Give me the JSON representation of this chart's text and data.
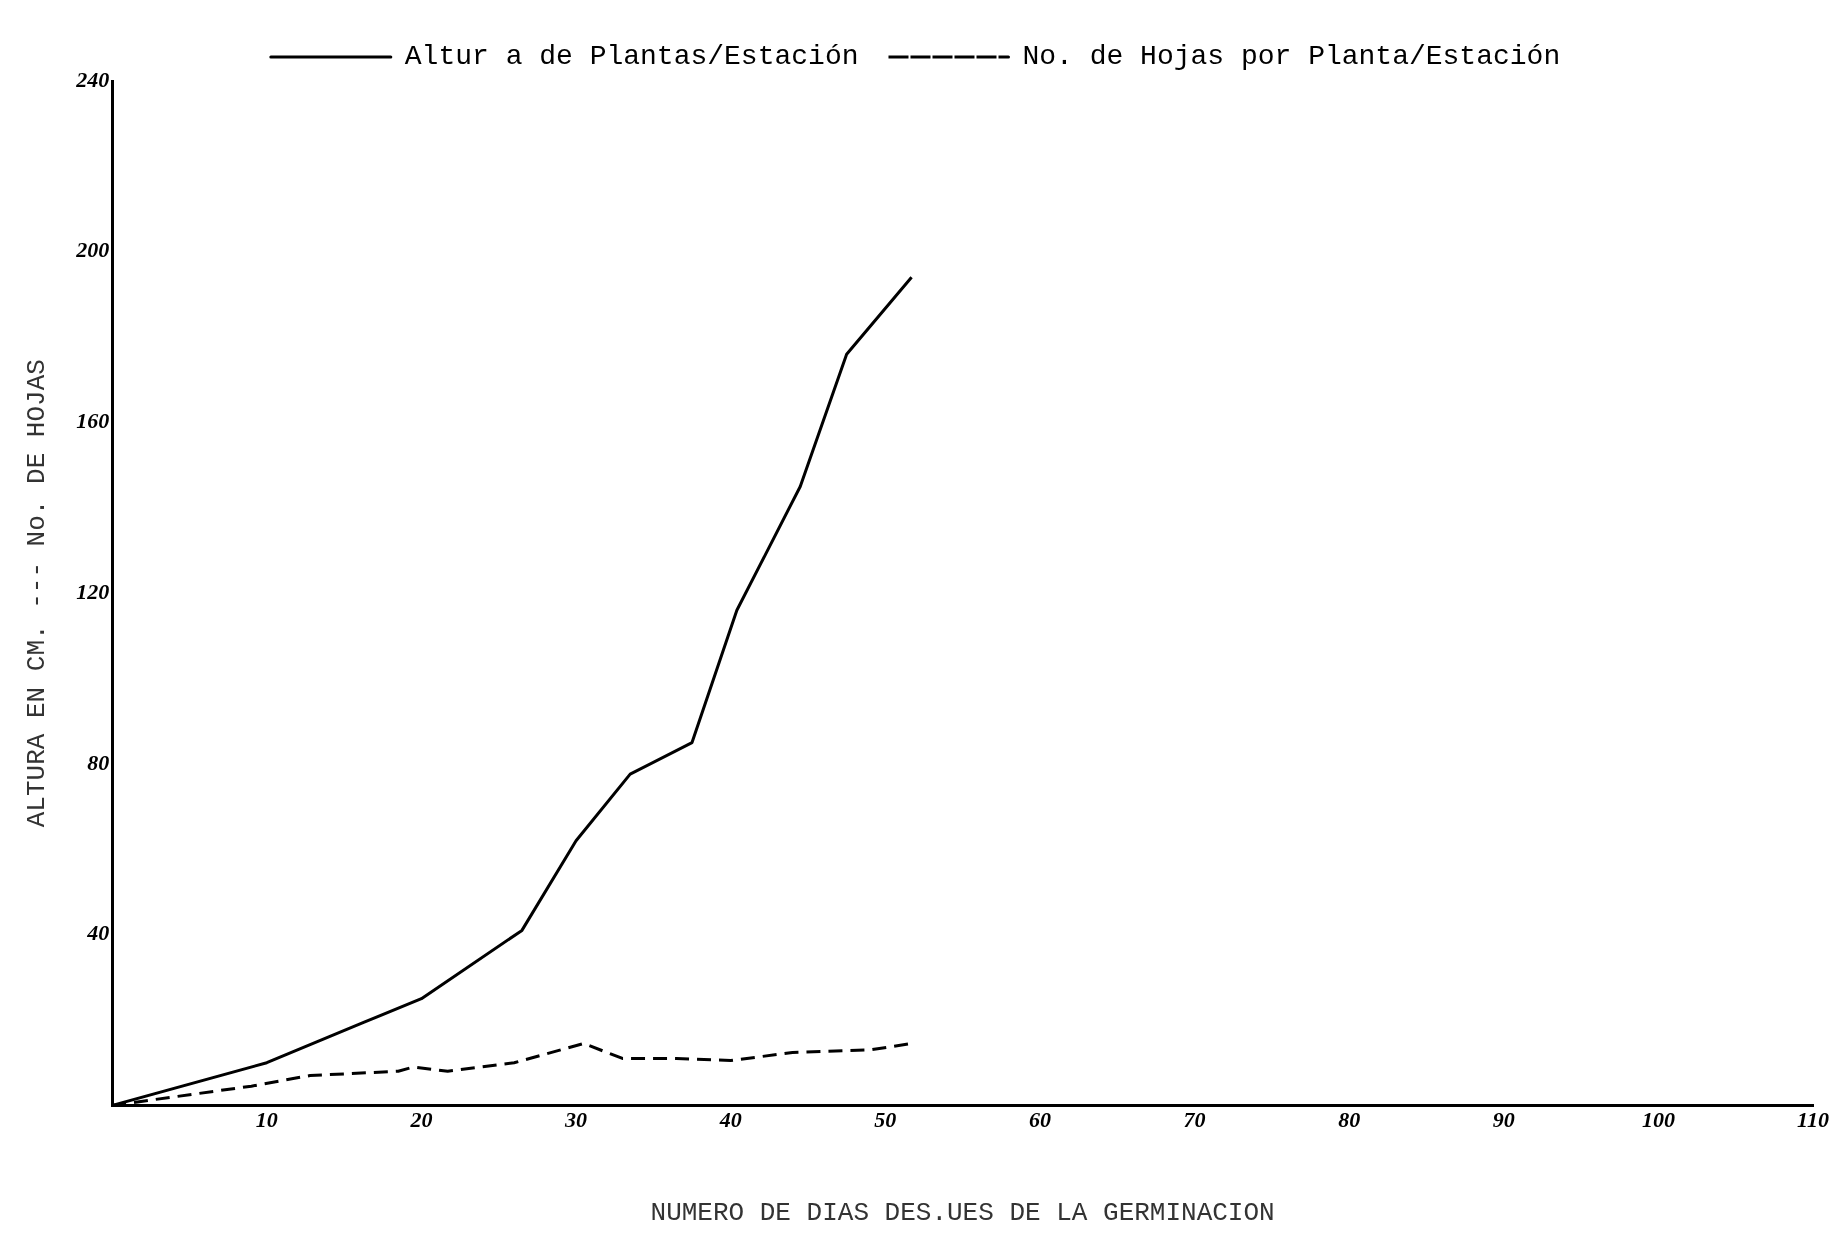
{
  "chart_data": {
    "type": "line",
    "xlabel": "NUMERO DE DIAS DES.UES DE LA GERMINACION",
    "ylabel": "ALTURA EN CM. --- No. DE HOJAS",
    "xlim": [
      0,
      110
    ],
    "xticks": [
      10,
      20,
      30,
      40,
      50,
      60,
      70,
      80,
      90,
      100,
      110
    ],
    "ylim": [
      0,
      240
    ],
    "yticks": [
      40,
      80,
      120,
      160,
      200,
      240
    ],
    "legend": "top",
    "marker": "none",
    "grid": false,
    "series": [
      {
        "name": "Altur a de Plantas/Estación",
        "color": "#000000",
        "line_style": "solid",
        "x": [
          0,
          10,
          16.3,
          20,
          26.5,
          30,
          33.5,
          37.5,
          40.4,
          44.5,
          47.5,
          51.7
        ],
        "values": [
          0,
          10,
          19.5,
          25,
          41,
          62,
          77.6,
          85,
          116,
          145,
          176,
          194
        ]
      },
      {
        "name": "No. de Hojas por Planta/Estación",
        "color": "#000000",
        "line_style": "dashed",
        "x": [
          0,
          9,
          12.8,
          18.5,
          19.5,
          21.7,
          26,
          30.5,
          33,
          36.5,
          40,
          44,
          49,
          51.7
        ],
        "values": [
          0,
          4.5,
          7,
          8,
          9,
          8,
          10,
          14.5,
          11,
          11,
          10.5,
          12.4,
          13,
          14.5
        ]
      }
    ]
  }
}
